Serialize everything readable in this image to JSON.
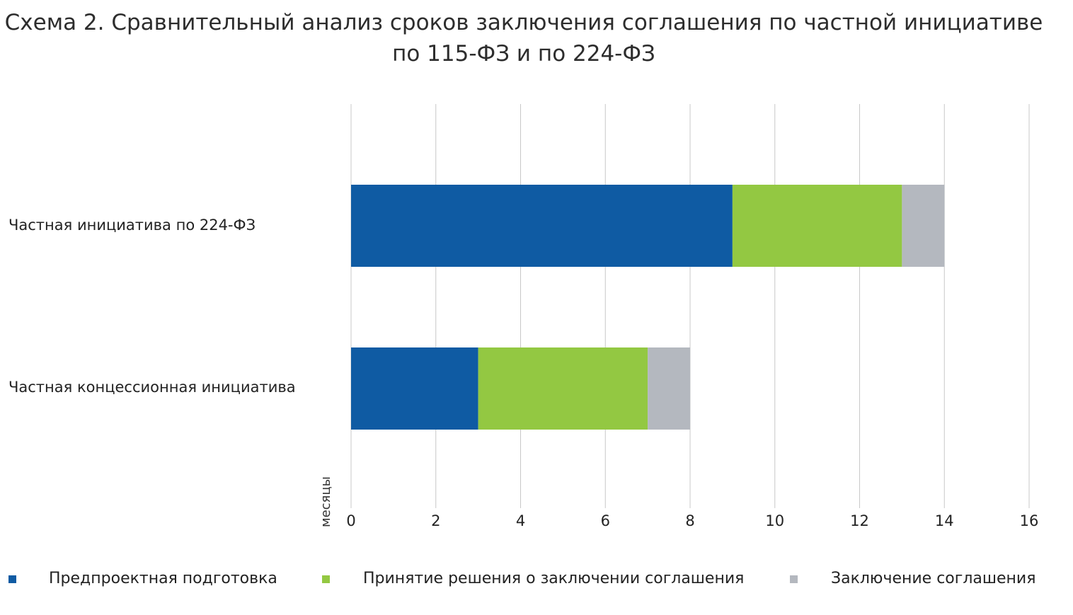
{
  "title": {
    "line1": "Схема 2. Сравнительный анализ сроков заключения соглашения по частной инициативе",
    "line2": "по 115-ФЗ и по 224-ФЗ"
  },
  "colors": {
    "series1": "#0f5ba3",
    "series2": "#93c842",
    "series3": "#b4b8bf",
    "grid": "#c8c8c8"
  },
  "chart_data": {
    "type": "bar",
    "orientation": "horizontal",
    "stacked": true,
    "categories": [
      "Частная инициатива по 224-ФЗ",
      "Частная концессионная инициатива"
    ],
    "series": [
      {
        "name": "Предпроектная подготовка",
        "values": [
          9,
          3
        ]
      },
      {
        "name": "Принятие решения о заключении соглашения",
        "values": [
          4,
          4
        ]
      },
      {
        "name": "Заключение соглашения",
        "values": [
          1,
          1
        ]
      }
    ],
    "xlabel": "месяцы",
    "xlim": [
      0,
      16
    ],
    "xticks": [
      "0",
      "2",
      "4",
      "6",
      "8",
      "10",
      "12",
      "14",
      "16"
    ],
    "grid": true,
    "legend_position": "bottom"
  }
}
